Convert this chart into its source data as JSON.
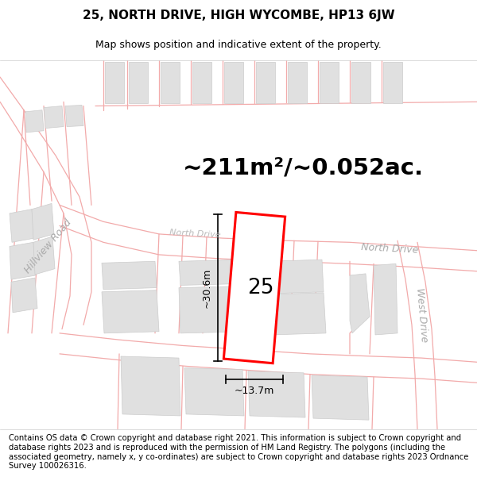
{
  "title": "25, NORTH DRIVE, HIGH WYCOMBE, HP13 6JW",
  "subtitle": "Map shows position and indicative extent of the property.",
  "area_text": "~211m²/~0.052ac.",
  "plot_number": "25",
  "dim_width": "~13.7m",
  "dim_height": "~30.6m",
  "footer": "Contains OS data © Crown copyright and database right 2021. This information is subject to Crown copyright and database rights 2023 and is reproduced with the permission of HM Land Registry. The polygons (including the associated geometry, namely x, y co-ordinates) are subject to Crown copyright and database rights 2023 Ordnance Survey 100026316.",
  "bg_color": "#ffffff",
  "map_bg": "#ffffff",
  "road_color": "#f2aaaa",
  "road_lw": 0.8,
  "plot_edge_color": "#ff0000",
  "plot_face_color": "#ffffff",
  "building_color": "#e0e0e0",
  "building_edge_color": "#cccccc",
  "road_label_color": "#aaaaaa",
  "dim_color": "#000000",
  "title_fontsize": 11,
  "subtitle_fontsize": 9,
  "area_fontsize": 21,
  "plot_num_fontsize": 19,
  "footer_fontsize": 7.2,
  "road_label_fontsize": 9
}
